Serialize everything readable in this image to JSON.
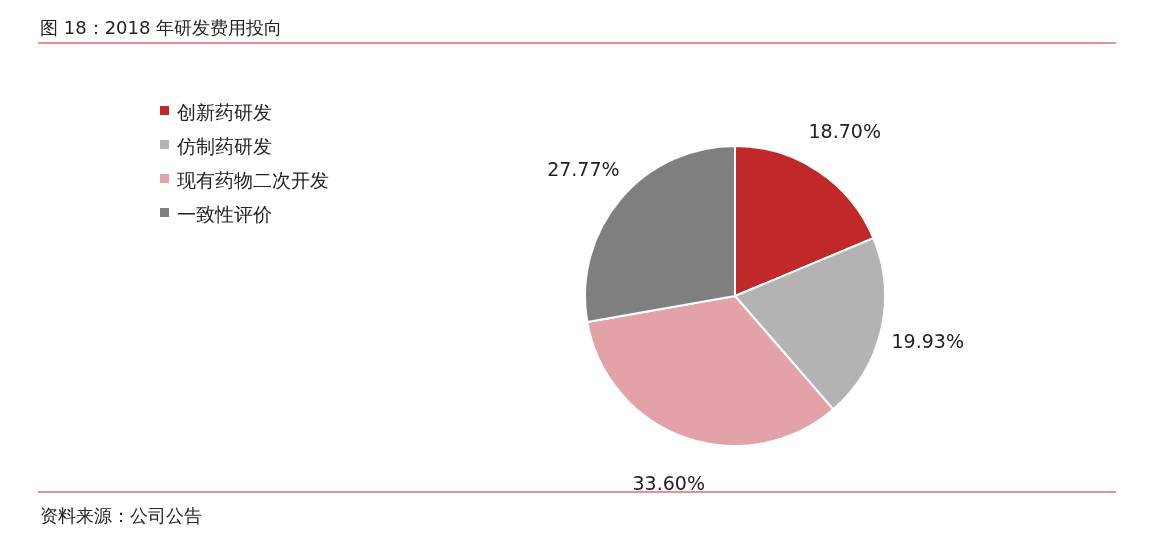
{
  "chart_data": {
    "type": "pie",
    "title": "图 18：2018 年研发费用投向",
    "categories": [
      "创新药研发",
      "仿制药研发",
      "现有药物二次开发",
      "一致性评价"
    ],
    "values": [
      18.7,
      19.93,
      33.6,
      27.77
    ],
    "colors": [
      "#c0282a",
      "#b3b3b3",
      "#e3a1a8",
      "#7f7f7f"
    ],
    "value_labels": [
      "18.70%",
      "19.93%",
      "33.60%",
      "27.77%"
    ],
    "legend": "top left",
    "annotations": [
      "资料来源：公司公告"
    ]
  }
}
